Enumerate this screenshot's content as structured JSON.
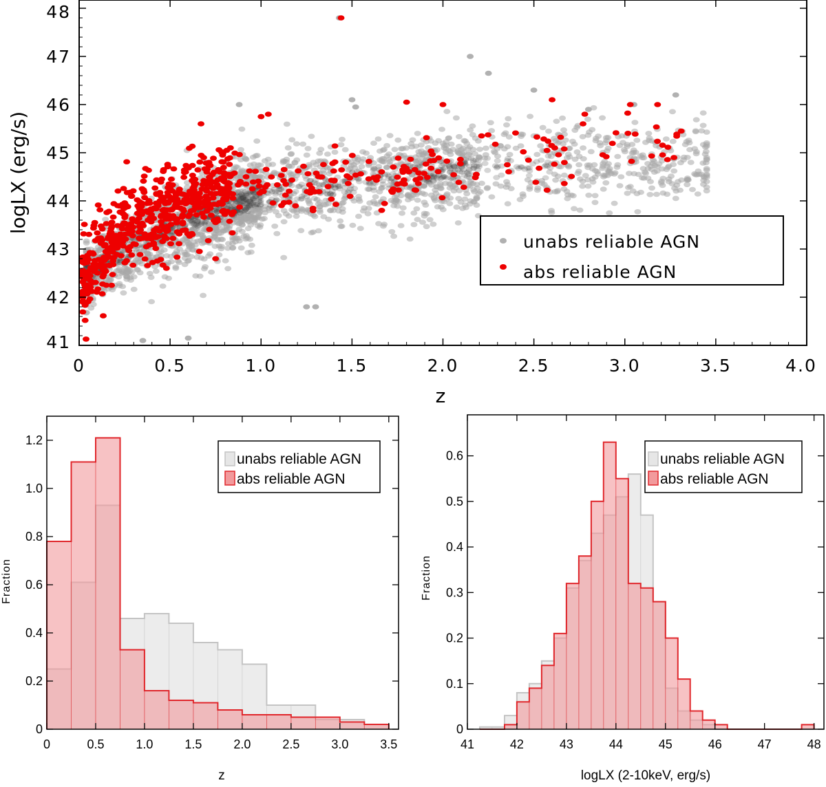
{
  "colors": {
    "unabs": "#a8a8a8",
    "unabs_dense": "#404040",
    "abs": "#ee0000",
    "hist_unabs_fill": "#e6e6e6",
    "hist_unabs_line": "#c4c4c4",
    "hist_abs_fill": "#f29a9c",
    "hist_abs_line": "#e0262b"
  },
  "chart_data": [
    {
      "type": "scatter",
      "title": "",
      "xlabel": "z",
      "ylabel": "logLX (erg/s)",
      "xlim": [
        0,
        4.0
      ],
      "ylim": [
        41,
        48
      ],
      "xticks": [
        "0",
        "0.5",
        "1.0",
        "1.5",
        "2.0",
        "2.5",
        "3.0",
        "3.5",
        "4.0"
      ],
      "yticks": [
        "41",
        "42",
        "43",
        "44",
        "45",
        "46",
        "47",
        "48"
      ],
      "legend": {
        "position": "lower-right",
        "entries": [
          "unabs reliable AGN",
          "abs reliable AGN"
        ]
      },
      "series": [
        {
          "name": "unabs reliable AGN",
          "trend": [
            [
              0.05,
              42.5
            ],
            [
              0.3,
              43.1
            ],
            [
              0.6,
              43.6
            ],
            [
              1.0,
              44.1
            ],
            [
              1.5,
              44.4
            ],
            [
              2.0,
              44.6
            ],
            [
              2.5,
              44.7
            ],
            [
              3.0,
              44.8
            ],
            [
              3.45,
              44.8
            ]
          ],
          "outliers": [
            [
              1.43,
              47.8
            ],
            [
              2.15,
              47.0
            ],
            [
              2.25,
              46.65
            ],
            [
              2.5,
              46.3
            ],
            [
              1.5,
              46.1
            ],
            [
              0.88,
              46.0
            ],
            [
              1.52,
              45.95
            ],
            [
              3.05,
              46.0
            ],
            [
              3.28,
              46.2
            ],
            [
              2.8,
              45.9
            ],
            [
              1.25,
              41.8
            ],
            [
              1.3,
              41.8
            ],
            [
              0.6,
              41.15
            ],
            [
              0.1,
              41.0
            ],
            [
              0.35,
              41.1
            ]
          ]
        },
        {
          "name": "abs reliable AGN",
          "trend": [
            [
              0.02,
              42.3
            ],
            [
              0.2,
              43.3
            ],
            [
              0.4,
              43.7
            ],
            [
              0.6,
              44.0
            ],
            [
              0.8,
              44.3
            ],
            [
              1.1,
              44.3
            ],
            [
              1.5,
              44.4
            ],
            [
              2.0,
              44.7
            ],
            [
              2.5,
              44.9
            ],
            [
              3.0,
              45.2
            ],
            [
              3.3,
              45.2
            ]
          ],
          "outliers": [
            [
              1.44,
              47.8
            ],
            [
              1.8,
              46.05
            ],
            [
              2.0,
              46.0
            ],
            [
              2.6,
              46.1
            ],
            [
              3.03,
              46.0
            ],
            [
              3.18,
              46.0
            ],
            [
              2.78,
              45.8
            ],
            [
              2.77,
              45.6
            ],
            [
              1.04,
              45.8
            ],
            [
              1.0,
              45.75
            ],
            [
              0.67,
              45.6
            ],
            [
              3.31,
              45.45
            ],
            [
              3.27,
              44.9
            ],
            [
              0.75,
              42.8
            ],
            [
              0.48,
              42.6
            ]
          ]
        }
      ]
    },
    {
      "type": "histogram",
      "title": "",
      "xlabel": "z",
      "ylabel": "Fraction",
      "xlim": [
        0,
        3.6
      ],
      "ylim": [
        0,
        1.3
      ],
      "xticks": [
        "0",
        "0.5",
        "1.0",
        "1.5",
        "2.0",
        "2.5",
        "3.0",
        "3.5"
      ],
      "yticks": [
        "0",
        "0.2",
        "0.4",
        "0.6",
        "0.8",
        "1.0",
        "1.2"
      ],
      "bin_edges": [
        0.0,
        0.25,
        0.5,
        0.75,
        1.0,
        1.25,
        1.5,
        1.75,
        2.0,
        2.25,
        2.5,
        2.75,
        3.0,
        3.25,
        3.5
      ],
      "legend": {
        "position": "top-right",
        "entries": [
          "unabs reliable AGN",
          "abs reliable AGN"
        ]
      },
      "series": [
        {
          "name": "unabs reliable AGN",
          "values": [
            0.25,
            0.61,
            0.93,
            0.46,
            0.48,
            0.44,
            0.36,
            0.33,
            0.27,
            0.1,
            0.1,
            0.04,
            0.04,
            0.02
          ]
        },
        {
          "name": "abs reliable AGN",
          "values": [
            0.78,
            1.11,
            1.21,
            0.33,
            0.16,
            0.12,
            0.11,
            0.08,
            0.06,
            0.06,
            0.05,
            0.05,
            0.03,
            0.02
          ]
        }
      ]
    },
    {
      "type": "histogram",
      "title": "",
      "xlabel": "logLX (2-10keV, erg/s)",
      "ylabel": "Fraction",
      "xlim": [
        41,
        48.2
      ],
      "ylim": [
        0,
        0.69
      ],
      "xticks": [
        "41",
        "42",
        "43",
        "44",
        "45",
        "46",
        "47",
        "48"
      ],
      "yticks": [
        "0",
        "0.1",
        "0.2",
        "0.3",
        "0.4",
        "0.5",
        "0.6"
      ],
      "bin_edges": [
        41.25,
        41.5,
        41.75,
        42.0,
        42.25,
        42.5,
        42.75,
        43.0,
        43.25,
        43.5,
        43.75,
        44.0,
        44.25,
        44.5,
        44.75,
        45.0,
        45.25,
        45.5,
        45.75,
        46.0,
        46.25,
        46.5,
        46.75,
        47.0,
        47.25,
        47.5,
        47.75,
        48.0
      ],
      "legend": {
        "position": "top-right",
        "entries": [
          "unabs reliable AGN",
          "abs reliable AGN"
        ]
      },
      "series": [
        {
          "name": "unabs reliable AGN",
          "values": [
            0.005,
            0.005,
            0.03,
            0.08,
            0.1,
            0.15,
            0.2,
            0.31,
            0.37,
            0.43,
            0.47,
            0.51,
            0.56,
            0.47,
            0.28,
            0.09,
            0.04,
            0.02,
            0.01,
            0.0,
            0.0,
            0.0,
            0.0,
            0.0,
            0.0,
            0.0,
            0.0
          ]
        },
        {
          "name": "abs reliable AGN",
          "values": [
            0.0,
            0.0,
            0.01,
            0.06,
            0.09,
            0.14,
            0.21,
            0.32,
            0.38,
            0.5,
            0.63,
            0.55,
            0.32,
            0.31,
            0.28,
            0.2,
            0.11,
            0.04,
            0.02,
            0.01,
            0.0,
            0.0,
            0.0,
            0.0,
            0.0,
            0.0,
            0.01
          ]
        }
      ]
    }
  ]
}
